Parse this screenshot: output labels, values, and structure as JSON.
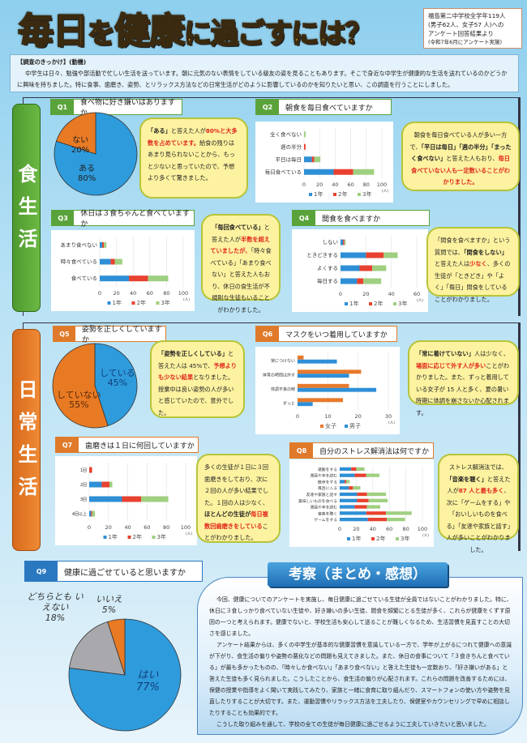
{
  "header": {
    "title_parts": [
      "毎日",
      "を",
      "健康",
      "に過ごすには？"
    ],
    "info": [
      "福島第二中学校全学年119人",
      "(男子62人、女子57 人)への",
      "アンケート回答結果より",
      "(令和7年6月にアンケート実施)"
    ]
  },
  "motive": {
    "heading": "【調査のきっかけ】(動機)",
    "body": "中学生は日々、勉強や部活動で忙しい生活を送っています。朝に元気のない表情をしている級友の姿を見ることもあります。そこで身近な中学生が健康的な生活を送れているのかどうかに興味を持ちました。特に食事、歯磨き、姿勢、とリラックス方法などの日常生活がどのように影響しているのかを知りたいと思い、この調査を行うことにしました。"
  },
  "sections": {
    "food": "食生活",
    "daily": "日常生活"
  },
  "colors": {
    "y1": "#2e8fd6",
    "y2": "#e8412f",
    "y3": "#9fcf80",
    "female": "#e8792a",
    "male": "#2e8fd6",
    "blue": "#2e9bdc",
    "orange": "#e87a24",
    "gray": "#a9a9ad"
  },
  "questions": {
    "q1": {
      "num": "Q1",
      "text": "食べ物に好き嫌いはありますか"
    },
    "q2": {
      "num": "Q2",
      "text": "朝食を毎日食べていますか"
    },
    "q3": {
      "num": "Q3",
      "text": "休日は３食ちゃんと食べていますか"
    },
    "q4": {
      "num": "Q4",
      "text": "間食を食べますか"
    },
    "q5": {
      "num": "Q5",
      "text": "姿勢を正しくしていますか"
    },
    "q6": {
      "num": "Q6",
      "text": "マスクをいつ着用していますか"
    },
    "q7": {
      "num": "Q7",
      "text": "歯磨きは１日に何回していますか"
    },
    "q8": {
      "num": "Q8",
      "text": "自分のストレス解消法は何ですか"
    },
    "q9": {
      "num": "Q9",
      "text": "健康に過ごせていると思いますか"
    }
  },
  "bubbles": {
    "q1": [
      {
        "t": "「ある」",
        "s": "bold"
      },
      {
        "t": "と答えた人が"
      },
      {
        "t": "80%と大多数を占めています。",
        "s": "red"
      },
      {
        "t": "給食の残りはあまり見られないことから、もっと少ないと思っていたので、予想より多くて驚きました。"
      }
    ],
    "q2": [
      {
        "t": "朝食を毎日食べている人が多い一方で、"
      },
      {
        "t": "「平日は毎日」「週の半分」「まったく食べない」",
        "s": "bold"
      },
      {
        "t": "と答えた人もおり、"
      },
      {
        "t": "毎日食べていない人も一定数いることがわかりました。",
        "s": "red"
      }
    ],
    "q3": [
      {
        "t": "「毎回食べている」",
        "s": "bold"
      },
      {
        "t": "と答えた人が"
      },
      {
        "t": "半数を超えていましたが、",
        "s": "red"
      },
      {
        "t": "「時々食べている」「あまり食べない」と答えた人もおり、休日の食生活が不規則な生徒もいることがわかりました。"
      }
    ],
    "q4": [
      {
        "t": "「間食を食べますか」という質問では、"
      },
      {
        "t": "「間食をしない」",
        "s": "bold"
      },
      {
        "t": "と答えた人は"
      },
      {
        "t": "少なく",
        "s": "red"
      },
      {
        "t": "、多くの生徒が「ときどき」や「よく」「毎日」間食をしていることがわかりました。"
      }
    ],
    "q5": [
      {
        "t": "「姿勢を正しくしている」",
        "s": "bold"
      },
      {
        "t": "と答えた人は 45%で、"
      },
      {
        "t": "予想よりも少ない結果",
        "s": "red"
      },
      {
        "t": "となりました。授業中は良い姿勢の人が多いと感じていたので、意外でした。"
      }
    ],
    "q6": [
      {
        "t": "「常に着けていない」",
        "s": "bold"
      },
      {
        "t": "人は少なく、"
      },
      {
        "t": "場面に応じて外す人が多い",
        "s": "red"
      },
      {
        "t": "ことがわかりました。また、ずっと着用している女子が 15 人と多く、夏の暑い時期に体調を崩さないか心配されます。"
      }
    ],
    "q7": [
      {
        "t": "多くの生徒が１日に３回歯磨きをしており、次に２回の人が多い結果でした。１回の人は少なく、"
      },
      {
        "t": "ほとんどの生徒が",
        "s": "bold"
      },
      {
        "t": "毎日複数回歯磨きをしている",
        "s": "red"
      },
      {
        "t": "ことがわかりました。"
      }
    ],
    "q8": [
      {
        "t": "ストレス解消法では、"
      },
      {
        "t": "「音楽を聴く」",
        "s": "bold"
      },
      {
        "t": "と答えた人が"
      },
      {
        "t": "87 人と最も多く",
        "s": "red"
      },
      {
        "t": "、次に「ゲームをする」や「おいしいものを食べる」「友達や家族と話す」人が多いことがわかりました。"
      }
    ]
  },
  "pies": {
    "q1": {
      "slices": [
        {
          "label": "ある",
          "pct": "80%",
          "value": 80,
          "color": "blue"
        },
        {
          "label": "ない",
          "pct": "20%",
          "value": 20,
          "color": "orange"
        }
      ]
    },
    "q5": {
      "slices": [
        {
          "label": "している",
          "pct": "45%",
          "value": 45,
          "color": "blue"
        },
        {
          "label": "していない",
          "pct": "55%",
          "value": 55,
          "color": "orange"
        }
      ]
    },
    "q9": {
      "slices": [
        {
          "label": "はい",
          "pct": "77%",
          "value": 77,
          "color": "blue"
        },
        {
          "label": "どちらとも いえない",
          "pct": "18%",
          "value": 18,
          "color": "gray"
        },
        {
          "label": "いいえ",
          "pct": "5%",
          "value": 5,
          "color": "orange"
        }
      ]
    }
  },
  "chart_data": [
    {
      "id": "q2",
      "type": "bar",
      "stacked": true,
      "categories": [
        "全く食べない",
        "週の半分",
        "平日は毎日",
        "毎日食べている"
      ],
      "series": [
        {
          "name": "1年",
          "color": "y1",
          "values": [
            0,
            0,
            10,
            38
          ]
        },
        {
          "name": "2年",
          "color": "y2",
          "values": [
            0,
            2,
            3,
            25
          ]
        },
        {
          "name": "3年",
          "color": "y3",
          "values": [
            2,
            0,
            8,
            27
          ]
        }
      ],
      "xlim": [
        0,
        100
      ],
      "ticks": [
        "0",
        "20",
        "40",
        "60",
        "80",
        "100"
      ],
      "unit": "(人)"
    },
    {
      "id": "q3",
      "type": "bar",
      "stacked": true,
      "categories": [
        "あまり食べない",
        "時々食べている",
        "食べている"
      ],
      "series": [
        {
          "name": "1年",
          "color": "y1",
          "values": [
            3,
            13,
            35
          ]
        },
        {
          "name": "2年",
          "color": "y2",
          "values": [
            2,
            5,
            23
          ]
        },
        {
          "name": "3年",
          "color": "y3",
          "values": [
            3,
            9,
            24
          ]
        }
      ],
      "xlim": [
        0,
        100
      ],
      "ticks": [
        "0",
        "20",
        "40",
        "60",
        "80",
        "100"
      ],
      "unit": "(人)"
    },
    {
      "id": "q4",
      "type": "bar",
      "stacked": true,
      "categories": [
        "しない",
        "ときどきする",
        "よくする",
        "毎日する"
      ],
      "series": [
        {
          "name": "1年",
          "color": "y1",
          "values": [
            2,
            20,
            15,
            13
          ]
        },
        {
          "name": "2年",
          "color": "y2",
          "values": [
            1,
            14,
            10,
            5
          ]
        },
        {
          "name": "3年",
          "color": "y3",
          "values": [
            1,
            11,
            11,
            14
          ]
        }
      ],
      "xlim": [
        0,
        60
      ],
      "ticks": [
        "0",
        "20",
        "40",
        "60"
      ],
      "unit": "(人)"
    },
    {
      "id": "q6",
      "type": "bar",
      "stacked": false,
      "categories": [
        "常につけない",
        "体育の時間は外す",
        "体調不良の時",
        "ずっと"
      ],
      "series": [
        {
          "name": "女子",
          "color": "female",
          "values": [
            2,
            21,
            17,
            15
          ]
        },
        {
          "name": "男子",
          "color": "male",
          "values": [
            13,
            17,
            26,
            5
          ]
        }
      ],
      "xlim": [
        0,
        30
      ],
      "ticks": [
        "0",
        "10",
        "20",
        "30"
      ],
      "unit": "(人)"
    },
    {
      "id": "q7",
      "type": "bar",
      "stacked": true,
      "categories": [
        "1回",
        "2回",
        "3回",
        "4回以上"
      ],
      "series": [
        {
          "name": "1年",
          "color": "y1",
          "values": [
            0,
            13,
            34,
            2
          ]
        },
        {
          "name": "2年",
          "color": "y2",
          "values": [
            3,
            8,
            20,
            1
          ]
        },
        {
          "name": "3年",
          "color": "y3",
          "values": [
            0,
            3,
            28,
            3
          ]
        }
      ],
      "xlim": [
        0,
        100
      ],
      "ticks": [
        "0",
        "20",
        "40",
        "60",
        "80",
        "100"
      ],
      "unit": "(人)"
    },
    {
      "id": "q8",
      "type": "bar",
      "stacked": true,
      "categories": [
        "運動をする",
        "漫画や本を読む",
        "散歩をする",
        "風呂に入る",
        "友達や家族と話す",
        "美味しいものを食べる",
        "漫画や本を読む",
        "音楽を聴く",
        "ゲームをする"
      ],
      "series": [
        {
          "name": "1年",
          "color": "y1",
          "values": [
            14,
            18,
            6,
            11,
            21,
            21,
            18,
            32,
            34
          ]
        },
        {
          "name": "2年",
          "color": "y2",
          "values": [
            6,
            14,
            2,
            5,
            12,
            14,
            15,
            24,
            23
          ]
        },
        {
          "name": "3年",
          "color": "y3",
          "values": [
            10,
            16,
            4,
            9,
            23,
            23,
            16,
            31,
            22
          ]
        }
      ],
      "xlim": [
        0,
        100
      ],
      "ticks": [
        "0",
        "20",
        "40",
        "60",
        "80",
        "100"
      ],
      "unit": "(人)"
    }
  ],
  "conclusion": {
    "title": "考察（まとめ・感想）",
    "paragraphs": [
      "今回、健康についてのアンケートを実施し、毎日健康に過ごせている生徒が全員ではないことがわかりました。特に、休日に３食しっかり食べていない生徒や、好き嫌いの多い生徒、間食を頻繁にとる生徒が多く、これらが健康をくずす原因の一つと考えられます。健康でないと、学校生活も安心して送ることが難しくなるため、生活習慣を見直すことの大切さを感じました。",
      "アンケート結果からは、多くの中学生が基本的な健康習慣を意識している一方で、学年が上がるにつれて健康への意識が下がり、食生活の偏りや姿勢の悪化などの問題も見えてきました。また、休日の食事について「３食きちんと食べている」が最も多かったものの、「時々しか食べない」「あまり食べない」と答えた生徒も一定数おり、「好き嫌いがある」と答えた生徒も多く見られました。こうしたことから、食生活の偏りが心配されます。これらの問題を改善するためには、保健の授業や指導をよく聞いて実践してみたり、家族と一緒に食育に取り組んだり、スマートフォンの使い方や姿勢を見直したりすることが大切です。また、運動習慣やリラックス方法を工夫したり、保健室やカウンセリングで早めに相談したりすることも効果的です。",
      "こうした取り組みを通して、学校の全ての生徒が毎日健康に過ごせるように工夫していきたいと思いました。"
    ]
  }
}
